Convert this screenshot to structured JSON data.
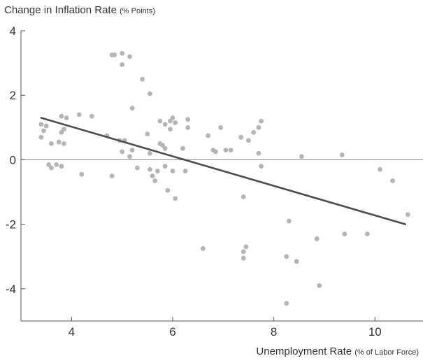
{
  "chart_data": {
    "type": "scatter",
    "title": "",
    "ylabel": "Change in Inflation Rate",
    "ylabel_unit": "(% Points)",
    "xlabel": "Unemployment Rate",
    "xlabel_unit": "(% of Labor Force)",
    "xlim": [
      3.0,
      10.95
    ],
    "ylim": [
      -5.0,
      4.0
    ],
    "xticks": [
      4,
      6,
      8,
      10
    ],
    "yticks": [
      4,
      2,
      0,
      -2,
      -4
    ],
    "grid": false,
    "zero_line": true,
    "colors": {
      "points": "#b5b5b5",
      "trend": "#4d4d4d",
      "axis": "#555555",
      "zero_line": "#8c8c8c"
    },
    "trend_line": {
      "x": [
        3.4,
        10.6
      ],
      "y": [
        1.3,
        -2.0
      ]
    },
    "points": [
      {
        "x": 3.4,
        "y": 1.1
      },
      {
        "x": 3.45,
        "y": 0.9
      },
      {
        "x": 3.5,
        "y": 1.05
      },
      {
        "x": 3.4,
        "y": 0.7
      },
      {
        "x": 3.6,
        "y": 0.5
      },
      {
        "x": 3.75,
        "y": 0.55
      },
      {
        "x": 3.85,
        "y": 0.5
      },
      {
        "x": 3.55,
        "y": -0.15
      },
      {
        "x": 3.6,
        "y": -0.25
      },
      {
        "x": 3.7,
        "y": -0.15
      },
      {
        "x": 3.8,
        "y": -0.2
      },
      {
        "x": 3.8,
        "y": 0.85
      },
      {
        "x": 3.85,
        "y": 0.95
      },
      {
        "x": 3.8,
        "y": 1.35
      },
      {
        "x": 3.9,
        "y": 1.3
      },
      {
        "x": 4.15,
        "y": 1.4
      },
      {
        "x": 4.4,
        "y": 1.35
      },
      {
        "x": 4.2,
        "y": -0.45
      },
      {
        "x": 4.7,
        "y": 0.75
      },
      {
        "x": 4.8,
        "y": -0.5
      },
      {
        "x": 4.8,
        "y": 3.25
      },
      {
        "x": 4.85,
        "y": 3.25
      },
      {
        "x": 5.0,
        "y": 3.3
      },
      {
        "x": 5.0,
        "y": 2.95
      },
      {
        "x": 5.15,
        "y": 3.2
      },
      {
        "x": 4.95,
        "y": 0.6
      },
      {
        "x": 5.05,
        "y": 0.6
      },
      {
        "x": 5.0,
        "y": 0.25
      },
      {
        "x": 5.15,
        "y": 0.1
      },
      {
        "x": 5.2,
        "y": 0.3
      },
      {
        "x": 5.2,
        "y": 1.6
      },
      {
        "x": 5.3,
        "y": -0.25
      },
      {
        "x": 5.4,
        "y": 2.5
      },
      {
        "x": 5.55,
        "y": 2.05
      },
      {
        "x": 5.5,
        "y": 0.8
      },
      {
        "x": 5.55,
        "y": 0.2
      },
      {
        "x": 5.55,
        "y": -0.3
      },
      {
        "x": 5.6,
        "y": -0.5
      },
      {
        "x": 5.65,
        "y": -0.65
      },
      {
        "x": 5.7,
        "y": -0.35
      },
      {
        "x": 5.75,
        "y": 0.5
      },
      {
        "x": 5.8,
        "y": 0.45
      },
      {
        "x": 5.85,
        "y": 0.35
      },
      {
        "x": 5.75,
        "y": 1.2
      },
      {
        "x": 5.85,
        "y": 1.1
      },
      {
        "x": 5.95,
        "y": 1.2
      },
      {
        "x": 6.0,
        "y": 1.3
      },
      {
        "x": 6.05,
        "y": 1.15
      },
      {
        "x": 5.95,
        "y": 0.95
      },
      {
        "x": 5.85,
        "y": -0.2
      },
      {
        "x": 5.9,
        "y": -0.95
      },
      {
        "x": 6.0,
        "y": -0.35
      },
      {
        "x": 6.05,
        "y": -1.2
      },
      {
        "x": 6.2,
        "y": 0.35
      },
      {
        "x": 6.25,
        "y": -0.35
      },
      {
        "x": 6.3,
        "y": 1.25
      },
      {
        "x": 6.3,
        "y": 1.0
      },
      {
        "x": 6.6,
        "y": -2.75
      },
      {
        "x": 6.7,
        "y": 0.75
      },
      {
        "x": 6.8,
        "y": 0.3
      },
      {
        "x": 6.85,
        "y": 0.25
      },
      {
        "x": 6.95,
        "y": 1.0
      },
      {
        "x": 7.05,
        "y": 0.3
      },
      {
        "x": 7.15,
        "y": 0.3
      },
      {
        "x": 7.35,
        "y": 0.7
      },
      {
        "x": 7.4,
        "y": -1.15
      },
      {
        "x": 7.4,
        "y": -2.85
      },
      {
        "x": 7.45,
        "y": -2.7
      },
      {
        "x": 7.4,
        "y": -3.05
      },
      {
        "x": 7.5,
        "y": 0.6
      },
      {
        "x": 7.6,
        "y": 0.85
      },
      {
        "x": 7.7,
        "y": 1.0
      },
      {
        "x": 7.75,
        "y": 1.2
      },
      {
        "x": 7.7,
        "y": 0.2
      },
      {
        "x": 7.75,
        "y": -0.2
      },
      {
        "x": 8.25,
        "y": -3.0
      },
      {
        "x": 8.3,
        "y": -1.9
      },
      {
        "x": 8.25,
        "y": -4.45
      },
      {
        "x": 8.45,
        "y": -3.15
      },
      {
        "x": 8.55,
        "y": 0.1
      },
      {
        "x": 8.85,
        "y": -2.45
      },
      {
        "x": 8.9,
        "y": -3.9
      },
      {
        "x": 9.35,
        "y": 0.15
      },
      {
        "x": 9.4,
        "y": -2.3
      },
      {
        "x": 9.85,
        "y": -2.3
      },
      {
        "x": 10.1,
        "y": -0.3
      },
      {
        "x": 10.35,
        "y": -0.65
      },
      {
        "x": 10.65,
        "y": -1.7
      }
    ]
  }
}
